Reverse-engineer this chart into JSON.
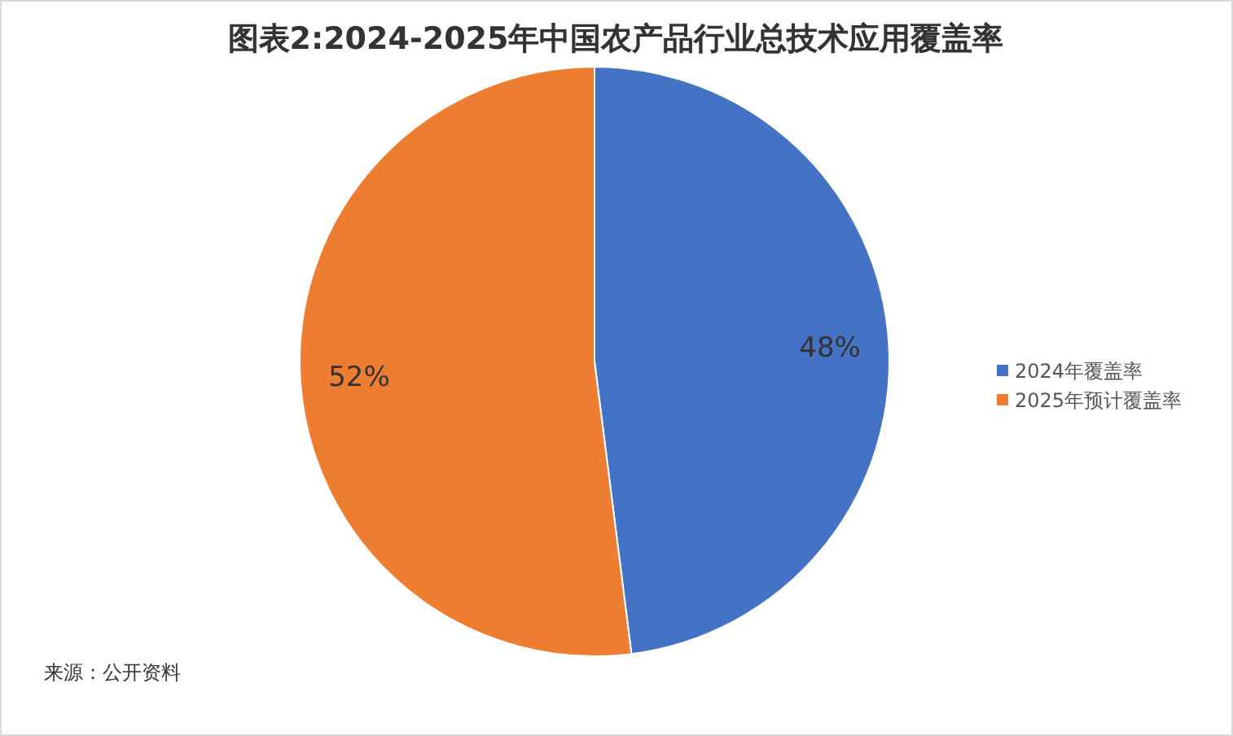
{
  "chart_data": {
    "type": "pie",
    "title": "图表2:2024-2025年中国农产品行业总技术应用覆盖率",
    "categories": [
      "2024年覆盖率",
      "2025年预计覆盖率"
    ],
    "values": [
      48,
      52
    ],
    "colors": [
      "#4472c4",
      "#ed7d31"
    ],
    "value_labels": [
      "48%",
      "52%"
    ],
    "legend": "right",
    "annotations": [
      "来源：公开资料"
    ]
  }
}
